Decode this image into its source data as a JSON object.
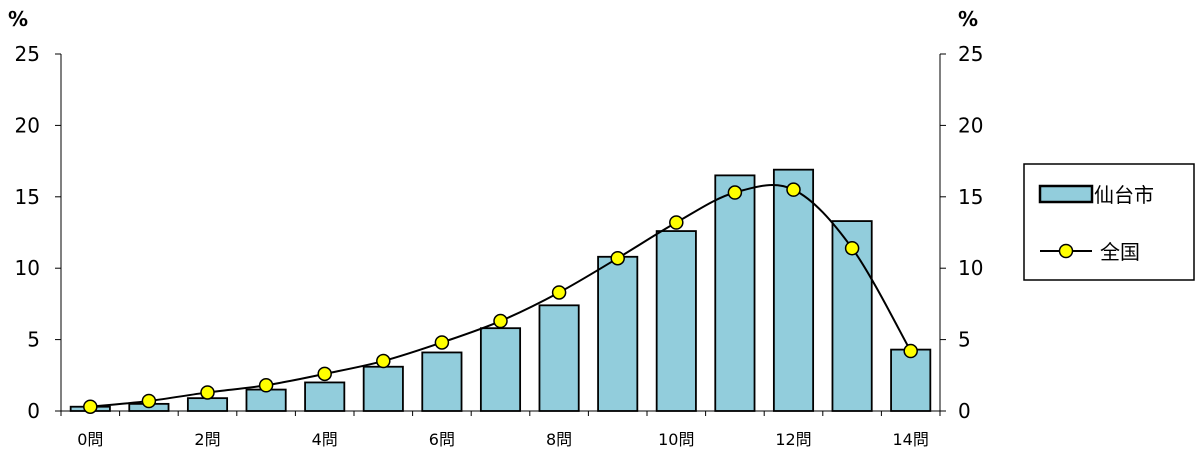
{
  "chart_data": {
    "type": "bar",
    "categories": [
      "0問",
      "1問",
      "2問",
      "3問",
      "4問",
      "5問",
      "6問",
      "7問",
      "8問",
      "9問",
      "10問",
      "11問",
      "12問",
      "13問",
      "14問"
    ],
    "x_tick_labels": [
      "0問",
      "",
      "2問",
      "",
      "4問",
      "",
      "6問",
      "",
      "8問",
      "",
      "10問",
      "",
      "12問",
      "",
      "14問"
    ],
    "series": [
      {
        "name": "仙台市",
        "kind": "bar",
        "values": [
          0.3,
          0.5,
          0.9,
          1.5,
          2.0,
          3.1,
          4.1,
          5.8,
          7.4,
          10.8,
          12.6,
          16.5,
          16.9,
          13.3,
          4.3
        ]
      },
      {
        "name": "全国",
        "kind": "line",
        "values": [
          0.3,
          0.7,
          1.3,
          1.8,
          2.6,
          3.5,
          4.8,
          6.3,
          8.3,
          10.7,
          13.2,
          15.3,
          15.5,
          11.4,
          4.2
        ]
      }
    ],
    "ylim": [
      0,
      25
    ],
    "yticks": [
      0,
      5,
      10,
      15,
      20,
      25
    ],
    "yunit_left": "%",
    "yunit_right": "%",
    "legend_position": "right",
    "colors": {
      "bar_fill": "#92CDDC",
      "marker_fill": "#FFFF00",
      "line": "#000000"
    }
  }
}
